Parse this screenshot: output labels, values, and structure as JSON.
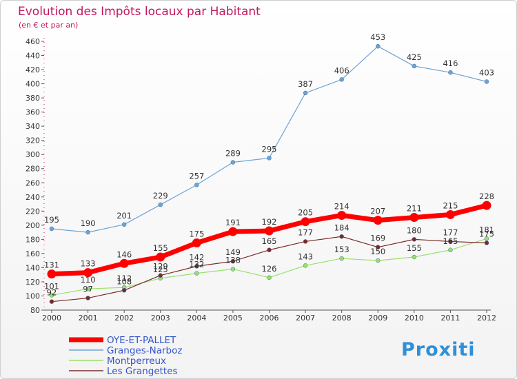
{
  "chart_data": {
    "type": "line",
    "title": "Evolution des Impôts locaux par Habitant",
    "subtitle": "(en € et par an)",
    "x": [
      "2000",
      "2001",
      "2002",
      "2003",
      "2004",
      "2005",
      "2006",
      "2007",
      "2008",
      "2009",
      "2010",
      "2011",
      "2012"
    ],
    "ylim": [
      80,
      460
    ],
    "ytick_step": 20,
    "grid": false,
    "legend_position": "bottom-left",
    "series": [
      {
        "name": "OYE-ET-PALLET",
        "color": "#ff0000",
        "emphasis": true,
        "values": [
          131,
          133,
          146,
          155,
          175,
          191,
          192,
          205,
          214,
          207,
          211,
          215,
          228
        ]
      },
      {
        "name": "Granges-Narboz",
        "color": "#6ea3d6",
        "values": [
          195,
          190,
          201,
          229,
          257,
          289,
          295,
          387,
          406,
          453,
          425,
          416,
          403
        ]
      },
      {
        "name": "Montperreux",
        "color": "#99e06a",
        "values": [
          101,
          110,
          112,
          125,
          132,
          138,
          126,
          143,
          153,
          150,
          155,
          165,
          181
        ]
      },
      {
        "name": "Les Grangettes",
        "color": "#7a2a2a",
        "values": [
          92,
          97,
          108,
          129,
          142,
          149,
          165,
          177,
          184,
          169,
          180,
          177,
          175
        ]
      }
    ]
  },
  "brand": {
    "logo_text": "Proxiti"
  }
}
